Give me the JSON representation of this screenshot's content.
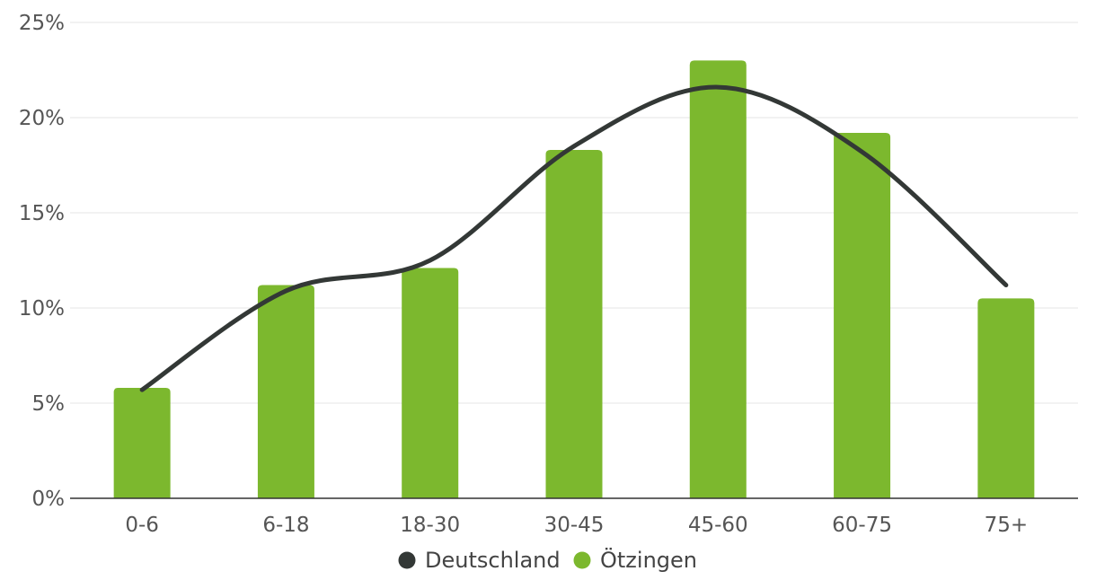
{
  "chart_data": {
    "type": "bar",
    "title": "",
    "xlabel": "",
    "ylabel": "",
    "categories": [
      "0-6",
      "6-18",
      "18-30",
      "30-45",
      "45-60",
      "60-75",
      "75+"
    ],
    "ylim": [
      0,
      25
    ],
    "y_ticks": [
      "0%",
      "5%",
      "10%",
      "15%",
      "20%",
      "25%"
    ],
    "grid": true,
    "legend_position": "bottom-center",
    "series": [
      {
        "name": "Deutschland",
        "type": "line",
        "color": "#333836",
        "values": [
          5.7,
          10.9,
          12.5,
          18.5,
          21.6,
          18.2,
          11.2
        ]
      },
      {
        "name": "Ötzingen",
        "type": "bar",
        "color": "#7cb82e",
        "values": [
          5.8,
          11.2,
          12.1,
          18.3,
          23.0,
          19.2,
          10.5
        ]
      }
    ]
  }
}
